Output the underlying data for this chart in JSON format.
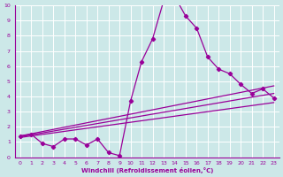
{
  "background_color": "#cce8e8",
  "grid_color": "#ffffff",
  "line_color": "#990099",
  "xlabel": "Windchill (Refroidissement éolien,°C)",
  "xlim": [
    -0.5,
    23.5
  ],
  "ylim": [
    0,
    10
  ],
  "xticks": [
    0,
    1,
    2,
    3,
    4,
    5,
    6,
    7,
    8,
    9,
    10,
    11,
    12,
    13,
    14,
    15,
    16,
    17,
    18,
    19,
    20,
    21,
    22,
    23
  ],
  "yticks": [
    0,
    1,
    2,
    3,
    4,
    5,
    6,
    7,
    8,
    9,
    10
  ],
  "main_series": {
    "x": [
      0,
      1,
      2,
      3,
      4,
      5,
      6,
      7,
      8,
      9,
      10,
      11,
      12,
      13,
      14,
      15,
      16,
      17,
      18,
      19,
      20,
      21,
      22,
      23
    ],
    "y": [
      1.4,
      1.5,
      0.9,
      0.7,
      1.2,
      1.2,
      0.8,
      1.2,
      0.3,
      0.1,
      3.7,
      6.3,
      7.8,
      10.3,
      10.6,
      9.3,
      8.5,
      6.6,
      5.8,
      5.5,
      4.8,
      4.2,
      4.5,
      3.9
    ]
  },
  "trend_lines": [
    {
      "x0": 0,
      "y0": 1.4,
      "x1": 23,
      "y1": 4.7
    },
    {
      "x0": 0,
      "y0": 1.35,
      "x1": 23,
      "y1": 4.2
    },
    {
      "x0": 0,
      "y0": 1.3,
      "x1": 23,
      "y1": 3.6
    }
  ]
}
